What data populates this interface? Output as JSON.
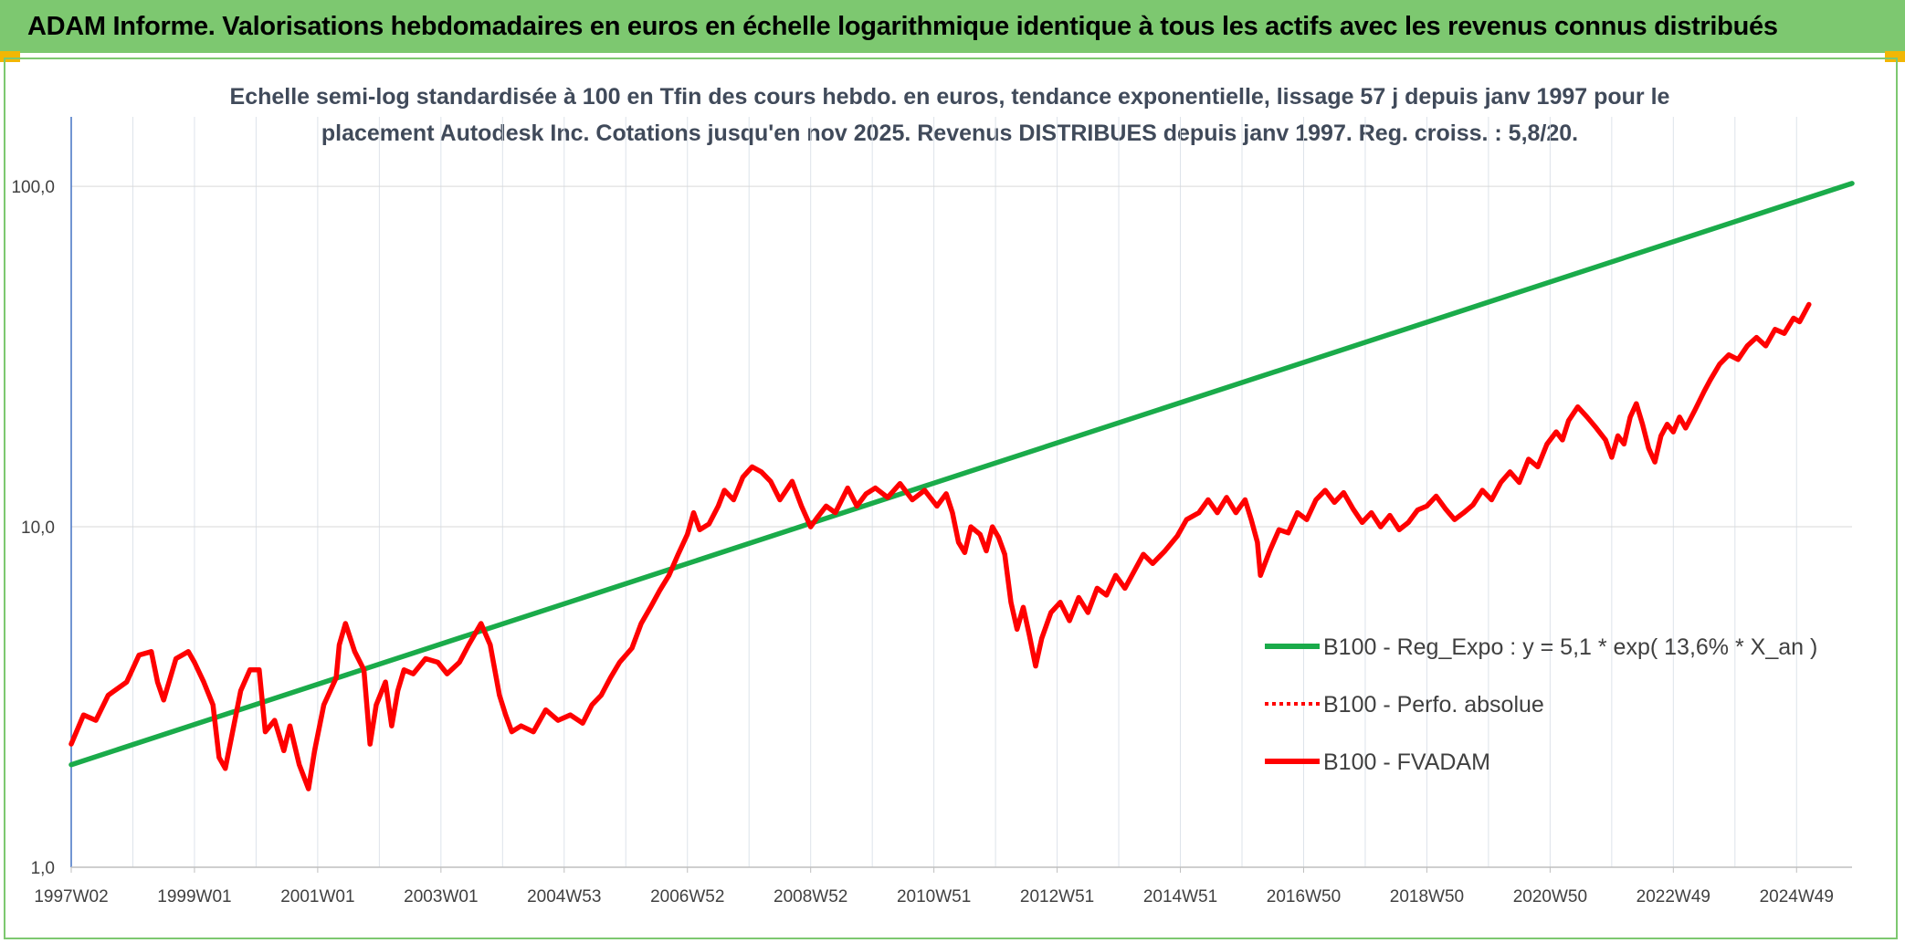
{
  "header": {
    "title": "ADAM Informe. Valorisations hebdomadaires en euros en échelle logarithmique identique à tous les actifs avec les revenus connus distribués"
  },
  "chart_data": {
    "type": "line",
    "title_line1": "Echelle semi-log standardisée à 100 en Tfin des cours hebdo. en euros, tendance exponentielle, lissage 57 j depuis janv 1997 pour le",
    "title_line2": "placement Autodesk Inc. Cotations jusqu'en nov 2025. Revenus DISTRIBUES depuis janv 1997. Reg. croiss. : 5,8/20.",
    "yscale": "log",
    "ylim": [
      1,
      160
    ],
    "xlim": [
      1997.0,
      2025.9
    ],
    "yticks": [
      {
        "value": 1,
        "label": "1,0"
      },
      {
        "value": 10,
        "label": "10,0"
      },
      {
        "value": 100,
        "label": "100,0"
      }
    ],
    "xticks": [
      {
        "value": 1997.0,
        "label": "1997W02"
      },
      {
        "value": 1999.0,
        "label": "1999W01"
      },
      {
        "value": 2001.0,
        "label": "2001W01"
      },
      {
        "value": 2003.0,
        "label": "2003W01"
      },
      {
        "value": 2005.0,
        "label": "2004W53"
      },
      {
        "value": 2007.0,
        "label": "2006W52"
      },
      {
        "value": 2009.0,
        "label": "2008W52"
      },
      {
        "value": 2011.0,
        "label": "2010W51"
      },
      {
        "value": 2013.0,
        "label": "2012W51"
      },
      {
        "value": 2015.0,
        "label": "2014W51"
      },
      {
        "value": 2017.0,
        "label": "2016W50"
      },
      {
        "value": 2019.0,
        "label": "2018W50"
      },
      {
        "value": 2021.0,
        "label": "2020W50"
      },
      {
        "value": 2023.0,
        "label": "2022W49"
      },
      {
        "value": 2025.0,
        "label": "2024W49"
      }
    ],
    "grid": true,
    "legend_position": "bottom-right",
    "series": [
      {
        "name": "B100 - Reg_Expo : y = 5,1 * exp( 13,6% *  X_an )",
        "color": "#1aab4a",
        "style": "solid",
        "points": [
          [
            1997.0,
            2.0
          ],
          [
            2025.9,
            102.0
          ]
        ]
      },
      {
        "name": "B100 - Perfo. absolue",
        "color": "#ff0000",
        "style": "dotted",
        "points": []
      },
      {
        "name": "B100 - FVADAM",
        "color": "#ff0000",
        "style": "solid",
        "points": [
          [
            1997.0,
            2.3
          ],
          [
            1997.2,
            2.8
          ],
          [
            1997.4,
            2.7
          ],
          [
            1997.6,
            3.2
          ],
          [
            1997.9,
            3.5
          ],
          [
            1998.1,
            4.2
          ],
          [
            1998.3,
            4.3
          ],
          [
            1998.4,
            3.5
          ],
          [
            1998.5,
            3.1
          ],
          [
            1998.7,
            4.1
          ],
          [
            1998.9,
            4.3
          ],
          [
            1999.0,
            4.0
          ],
          [
            1999.15,
            3.5
          ],
          [
            1999.3,
            3.0
          ],
          [
            1999.4,
            2.1
          ],
          [
            1999.5,
            1.95
          ],
          [
            1999.6,
            2.4
          ],
          [
            1999.75,
            3.3
          ],
          [
            1999.9,
            3.8
          ],
          [
            2000.05,
            3.8
          ],
          [
            2000.15,
            2.5
          ],
          [
            2000.3,
            2.7
          ],
          [
            2000.45,
            2.2
          ],
          [
            2000.55,
            2.6
          ],
          [
            2000.7,
            2.0
          ],
          [
            2000.85,
            1.7
          ],
          [
            2000.95,
            2.2
          ],
          [
            2001.1,
            3.0
          ],
          [
            2001.3,
            3.6
          ],
          [
            2001.35,
            4.5
          ],
          [
            2001.45,
            5.2
          ],
          [
            2001.6,
            4.3
          ],
          [
            2001.75,
            3.8
          ],
          [
            2001.85,
            2.3
          ],
          [
            2001.95,
            3.0
          ],
          [
            2002.1,
            3.5
          ],
          [
            2002.2,
            2.6
          ],
          [
            2002.3,
            3.3
          ],
          [
            2002.4,
            3.8
          ],
          [
            2002.55,
            3.7
          ],
          [
            2002.75,
            4.1
          ],
          [
            2002.95,
            4.0
          ],
          [
            2003.1,
            3.7
          ],
          [
            2003.3,
            4.0
          ],
          [
            2003.45,
            4.5
          ],
          [
            2003.65,
            5.2
          ],
          [
            2003.8,
            4.5
          ],
          [
            2003.95,
            3.2
          ],
          [
            2004.05,
            2.8
          ],
          [
            2004.15,
            2.5
          ],
          [
            2004.3,
            2.6
          ],
          [
            2004.5,
            2.5
          ],
          [
            2004.7,
            2.9
          ],
          [
            2004.9,
            2.7
          ],
          [
            2005.1,
            2.8
          ],
          [
            2005.3,
            2.65
          ],
          [
            2005.45,
            3.0
          ],
          [
            2005.6,
            3.2
          ],
          [
            2005.75,
            3.6
          ],
          [
            2005.9,
            4.0
          ],
          [
            2006.1,
            4.4
          ],
          [
            2006.25,
            5.2
          ],
          [
            2006.4,
            5.8
          ],
          [
            2006.55,
            6.5
          ],
          [
            2006.7,
            7.2
          ],
          [
            2006.85,
            8.3
          ],
          [
            2007.0,
            9.5
          ],
          [
            2007.1,
            11.0
          ],
          [
            2007.2,
            9.8
          ],
          [
            2007.35,
            10.2
          ],
          [
            2007.5,
            11.5
          ],
          [
            2007.6,
            12.8
          ],
          [
            2007.75,
            12.0
          ],
          [
            2007.9,
            14.0
          ],
          [
            2008.05,
            15.0
          ],
          [
            2008.2,
            14.5
          ],
          [
            2008.35,
            13.6
          ],
          [
            2008.5,
            12.0
          ],
          [
            2008.7,
            13.6
          ],
          [
            2008.85,
            11.5
          ],
          [
            2009.0,
            10.0
          ],
          [
            2009.1,
            10.6
          ],
          [
            2009.25,
            11.5
          ],
          [
            2009.4,
            11.0
          ],
          [
            2009.6,
            13.0
          ],
          [
            2009.75,
            11.5
          ],
          [
            2009.9,
            12.5
          ],
          [
            2010.05,
            13.0
          ],
          [
            2010.25,
            12.2
          ],
          [
            2010.45,
            13.4
          ],
          [
            2010.65,
            12.0
          ],
          [
            2010.85,
            12.8
          ],
          [
            2011.05,
            11.5
          ],
          [
            2011.2,
            12.5
          ],
          [
            2011.3,
            11.0
          ],
          [
            2011.4,
            9.0
          ],
          [
            2011.5,
            8.4
          ],
          [
            2011.6,
            10.0
          ],
          [
            2011.75,
            9.5
          ],
          [
            2011.85,
            8.5
          ],
          [
            2011.95,
            10.0
          ],
          [
            2012.05,
            9.3
          ],
          [
            2012.15,
            8.3
          ],
          [
            2012.25,
            6.0
          ],
          [
            2012.35,
            5.0
          ],
          [
            2012.45,
            5.8
          ],
          [
            2012.55,
            4.8
          ],
          [
            2012.65,
            3.9
          ],
          [
            2012.75,
            4.7
          ],
          [
            2012.9,
            5.6
          ],
          [
            2013.05,
            6.0
          ],
          [
            2013.2,
            5.3
          ],
          [
            2013.35,
            6.2
          ],
          [
            2013.5,
            5.6
          ],
          [
            2013.65,
            6.6
          ],
          [
            2013.8,
            6.3
          ],
          [
            2013.95,
            7.2
          ],
          [
            2014.1,
            6.6
          ],
          [
            2014.25,
            7.4
          ],
          [
            2014.4,
            8.3
          ],
          [
            2014.55,
            7.8
          ],
          [
            2014.75,
            8.5
          ],
          [
            2014.95,
            9.4
          ],
          [
            2015.1,
            10.5
          ],
          [
            2015.3,
            11.0
          ],
          [
            2015.45,
            12.0
          ],
          [
            2015.6,
            11.0
          ],
          [
            2015.75,
            12.2
          ],
          [
            2015.9,
            11.0
          ],
          [
            2016.05,
            12.0
          ],
          [
            2016.15,
            10.5
          ],
          [
            2016.25,
            9.0
          ],
          [
            2016.3,
            7.2
          ],
          [
            2016.45,
            8.5
          ],
          [
            2016.6,
            9.8
          ],
          [
            2016.75,
            9.6
          ],
          [
            2016.9,
            11.0
          ],
          [
            2017.05,
            10.5
          ],
          [
            2017.2,
            12.0
          ],
          [
            2017.35,
            12.8
          ],
          [
            2017.5,
            11.8
          ],
          [
            2017.65,
            12.6
          ],
          [
            2017.8,
            11.3
          ],
          [
            2017.95,
            10.3
          ],
          [
            2018.1,
            11.0
          ],
          [
            2018.25,
            10.0
          ],
          [
            2018.4,
            10.8
          ],
          [
            2018.55,
            9.8
          ],
          [
            2018.7,
            10.3
          ],
          [
            2018.85,
            11.2
          ],
          [
            2019.0,
            11.5
          ],
          [
            2019.15,
            12.3
          ],
          [
            2019.3,
            11.3
          ],
          [
            2019.45,
            10.5
          ],
          [
            2019.6,
            11.0
          ],
          [
            2019.75,
            11.6
          ],
          [
            2019.9,
            12.8
          ],
          [
            2020.05,
            12.0
          ],
          [
            2020.2,
            13.5
          ],
          [
            2020.35,
            14.5
          ],
          [
            2020.5,
            13.5
          ],
          [
            2020.65,
            15.8
          ],
          [
            2020.8,
            15.0
          ],
          [
            2020.95,
            17.5
          ],
          [
            2021.1,
            19.0
          ],
          [
            2021.2,
            18.0
          ],
          [
            2021.3,
            20.5
          ],
          [
            2021.45,
            22.5
          ],
          [
            2021.6,
            21.0
          ],
          [
            2021.75,
            19.5
          ],
          [
            2021.9,
            18.0
          ],
          [
            2022.0,
            16.0
          ],
          [
            2022.1,
            18.5
          ],
          [
            2022.2,
            17.5
          ],
          [
            2022.3,
            21.0
          ],
          [
            2022.4,
            23.0
          ],
          [
            2022.5,
            20.0
          ],
          [
            2022.6,
            17.0
          ],
          [
            2022.7,
            15.5
          ],
          [
            2022.8,
            18.5
          ],
          [
            2022.9,
            20.0
          ],
          [
            2023.0,
            19.0
          ],
          [
            2023.1,
            21.0
          ],
          [
            2023.2,
            19.5
          ],
          [
            2023.35,
            22.0
          ],
          [
            2023.5,
            25.0
          ],
          [
            2023.6,
            27.0
          ],
          [
            2023.75,
            30.0
          ],
          [
            2023.9,
            32.0
          ],
          [
            2024.05,
            31.0
          ],
          [
            2024.2,
            34.0
          ],
          [
            2024.35,
            36.0
          ],
          [
            2024.5,
            34.0
          ],
          [
            2024.65,
            38.0
          ],
          [
            2024.8,
            37.0
          ],
          [
            2024.95,
            41.0
          ],
          [
            2025.05,
            40.0
          ],
          [
            2025.2,
            45.0
          ]
        ]
      }
    ]
  }
}
